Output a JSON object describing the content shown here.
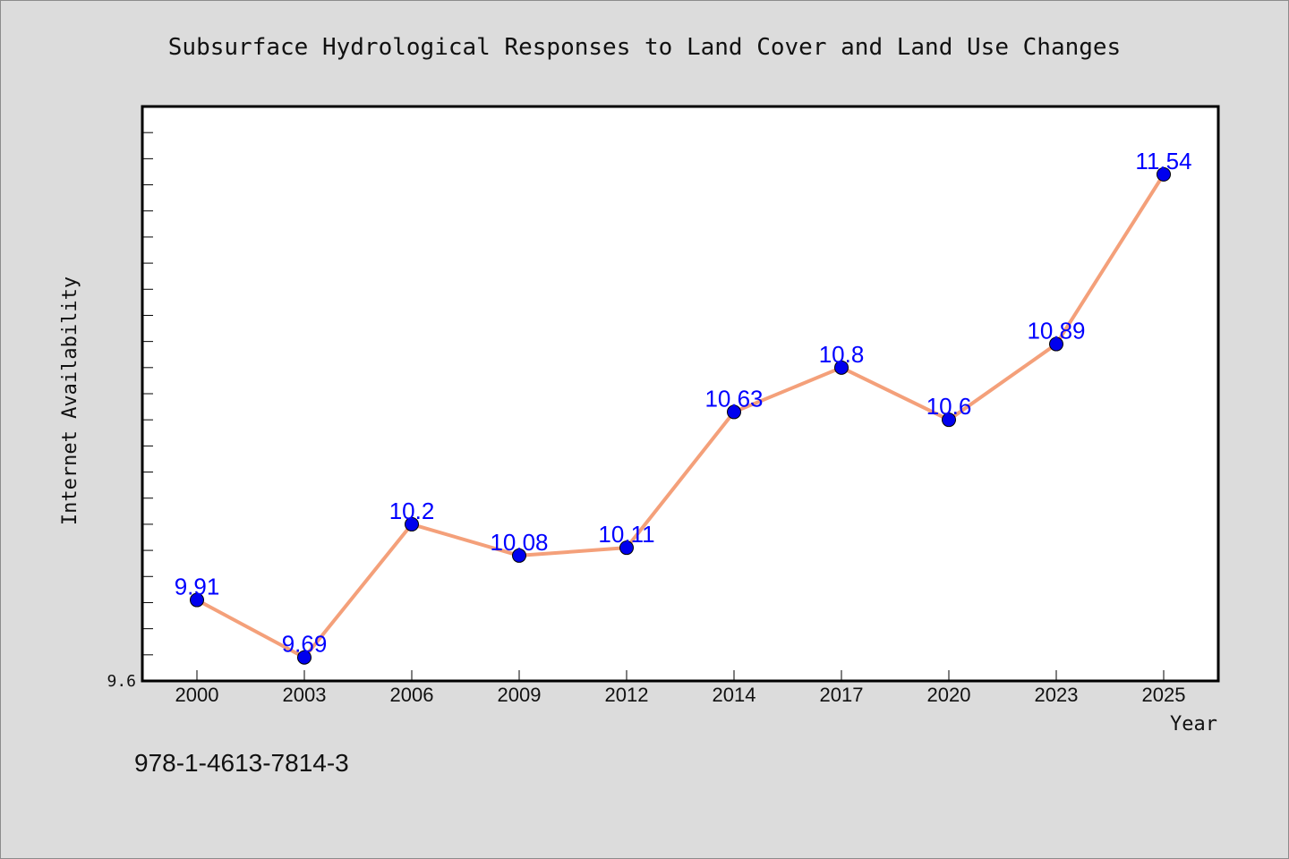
{
  "chart_data": {
    "type": "line",
    "title": "Subsurface Hydrological Responses to Land Cover and Land Use Changes",
    "xlabel": "Year",
    "ylabel": "Internet Availability",
    "categories": [
      "2000",
      "2003",
      "2006",
      "2009",
      "2012",
      "2014",
      "2017",
      "2020",
      "2023",
      "2025"
    ],
    "series": [
      {
        "values": [
          9.91,
          9.69,
          10.2,
          10.08,
          10.11,
          10.63,
          10.8,
          10.6,
          10.89,
          11.54
        ],
        "labels": [
          "9.91",
          "9.69",
          "10.2",
          "10.08",
          "10.11",
          "10.63",
          "10.8",
          "10.6",
          "10.89",
          "11.54"
        ],
        "line_color": "#f4a07a",
        "marker_color": "#0000ee"
      }
    ],
    "ylim": [
      9.6,
      11.8
    ],
    "yticks": [
      "9.6"
    ],
    "grid": false,
    "legend": "none"
  },
  "footnote": "978-1-4613-7814-3",
  "colors": {
    "background": "#dcdcdc",
    "plot_area": "#ffffff",
    "data_label": "#0000ff"
  }
}
